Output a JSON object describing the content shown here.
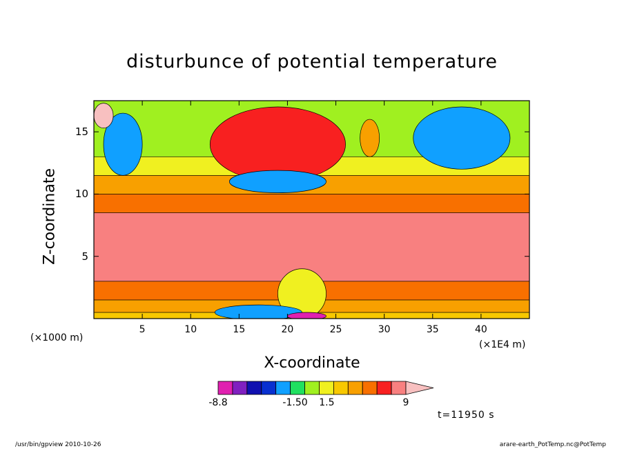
{
  "chart_data": {
    "type": "heatmap",
    "title": "disturbunce of potential temperature",
    "xlabel": "X-coordinate",
    "ylabel": "Z-coordinate",
    "x_unit_left": "(×1000 m)",
    "x_unit_right": "(×1E4 m)",
    "xlim": [
      0,
      45
    ],
    "ylim": [
      0,
      17.5
    ],
    "x_ticks": [
      "5",
      "10",
      "15",
      "20",
      "25",
      "30",
      "35",
      "40"
    ],
    "y_ticks": [
      "5",
      "10",
      "15"
    ],
    "colorbar": {
      "min": -8.8,
      "max": 9,
      "labels": [
        "-8.8",
        "-1.50",
        "1.5",
        "9"
      ],
      "colors": [
        "#e020b0",
        "#8020c0",
        "#1010b0",
        "#0830d0",
        "#10a0ff",
        "#20e060",
        "#a0f020",
        "#f0f020",
        "#f8c800",
        "#f8a000",
        "#f87000",
        "#f82020",
        "#f88080",
        "#f8c0c0"
      ],
      "extend": "max"
    },
    "layers": [
      {
        "z": [
          0.0,
          0.5
        ],
        "value": 1.5
      },
      {
        "z": [
          0.5,
          1.5
        ],
        "value": 3.0
      },
      {
        "z": [
          1.5,
          3.0
        ],
        "value": 5.0
      },
      {
        "z": [
          3.0,
          8.5
        ],
        "value": 7.0
      },
      {
        "z": [
          8.5,
          10.0
        ],
        "value": 5.0
      },
      {
        "z": [
          10.0,
          11.5
        ],
        "value": 3.0
      },
      {
        "z": [
          11.5,
          13.0
        ],
        "value": 1.0
      },
      {
        "z": [
          13.0,
          17.5
        ],
        "value": -1.0
      }
    ],
    "blobs": [
      {
        "x": 19,
        "z": 14,
        "rx": 7,
        "rz": 3,
        "value": 5.5
      },
      {
        "x": 19,
        "z": 11,
        "rx": 5,
        "rz": 0.9,
        "value": -3.0
      },
      {
        "x": 3,
        "z": 14,
        "rx": 2,
        "rz": 2.5,
        "value": -3.5
      },
      {
        "x": 38,
        "z": 14.5,
        "rx": 5,
        "rz": 2.5,
        "value": -3.5
      },
      {
        "x": 1,
        "z": 16.3,
        "rx": 1,
        "rz": 1,
        "value": 8.0
      },
      {
        "x": 28.5,
        "z": 14.5,
        "rx": 1,
        "rz": 1.5,
        "value": 3.0
      },
      {
        "x": 21.5,
        "z": 2,
        "rx": 2.5,
        "rz": 2,
        "value": 1.0
      },
      {
        "x": 17,
        "z": 0.5,
        "rx": 4.5,
        "rz": 0.6,
        "value": -3.0
      },
      {
        "x": 22,
        "z": 0.2,
        "rx": 2,
        "rz": 0.3,
        "value": -8.0
      }
    ],
    "time": "t=11950 s"
  },
  "footer": {
    "left": "/usr/bin/gpview   2010-10-26",
    "right": "arare-earth_PotTemp.nc@PotTemp"
  }
}
